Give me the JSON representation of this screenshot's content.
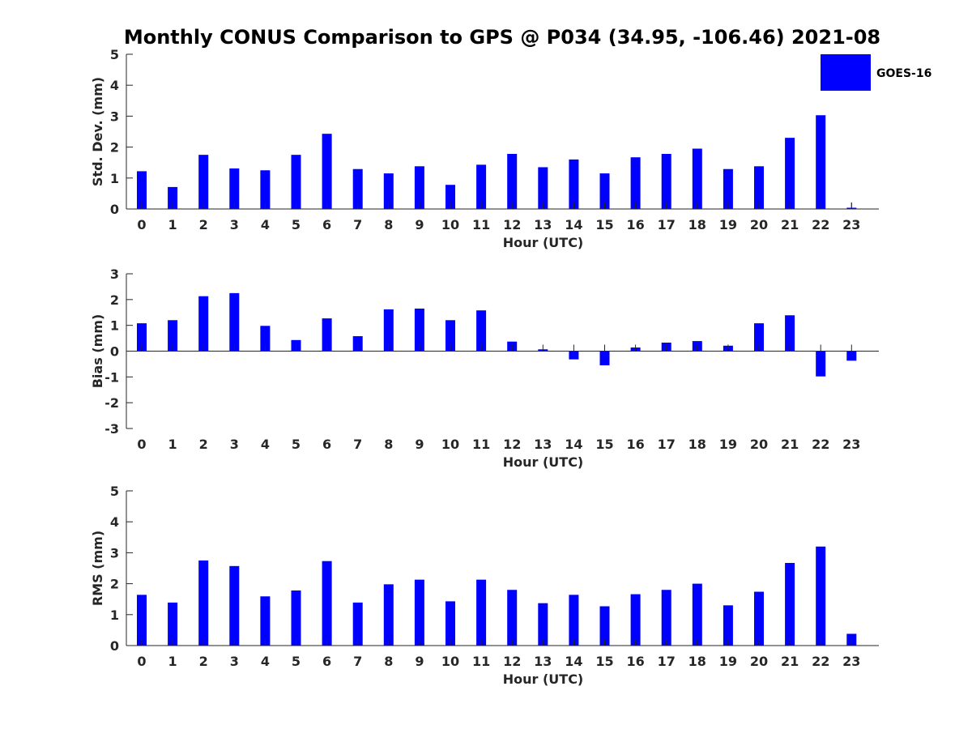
{
  "colors": {
    "bar": "#0000ff",
    "axis": "#262626",
    "background": "#ffffff"
  },
  "chart_data": {
    "type": "bar",
    "title": "Monthly CONUS Comparison to GPS @ P034 (34.95, -106.46) 2021-08",
    "legend": {
      "label": "GOES-16",
      "placement": "top-right"
    },
    "categories": [
      "0",
      "1",
      "2",
      "3",
      "4",
      "5",
      "6",
      "7",
      "8",
      "9",
      "10",
      "11",
      "12",
      "13",
      "14",
      "15",
      "16",
      "17",
      "18",
      "19",
      "20",
      "21",
      "22",
      "23"
    ],
    "panels": [
      {
        "id": "std",
        "ylabel": "Std. Dev. (mm)",
        "xlabel": "Hour (UTC)",
        "ylim": [
          0,
          5
        ],
        "yticks": [
          0,
          1,
          2,
          3,
          4,
          5
        ],
        "values": [
          1.22,
          0.71,
          1.75,
          1.31,
          1.25,
          1.75,
          2.43,
          1.29,
          1.15,
          1.38,
          0.78,
          1.43,
          1.78,
          1.35,
          1.6,
          1.15,
          1.67,
          1.78,
          1.95,
          1.29,
          1.38,
          2.3,
          3.03,
          0.04
        ]
      },
      {
        "id": "bias",
        "ylabel": "Bias (mm)",
        "xlabel": "Hour (UTC)",
        "ylim": [
          -3,
          3
        ],
        "yticks": [
          -3,
          -2,
          -1,
          0,
          1,
          2,
          3
        ],
        "values": [
          1.08,
          1.2,
          2.13,
          2.25,
          0.98,
          0.43,
          1.27,
          0.58,
          1.62,
          1.65,
          1.2,
          1.58,
          0.37,
          0.07,
          -0.32,
          -0.55,
          0.14,
          0.33,
          0.39,
          0.21,
          1.08,
          1.39,
          -0.98,
          -0.37
        ]
      },
      {
        "id": "rms",
        "ylabel": "RMS (mm)",
        "xlabel": "Hour (UTC)",
        "ylim": [
          0,
          5
        ],
        "yticks": [
          0,
          1,
          2,
          3,
          4,
          5
        ],
        "values": [
          1.64,
          1.39,
          2.75,
          2.57,
          1.59,
          1.78,
          2.73,
          1.39,
          1.98,
          2.13,
          1.43,
          2.13,
          1.8,
          1.37,
          1.64,
          1.27,
          1.66,
          1.8,
          2.0,
          1.3,
          1.74,
          2.67,
          3.2,
          0.38
        ]
      }
    ]
  }
}
